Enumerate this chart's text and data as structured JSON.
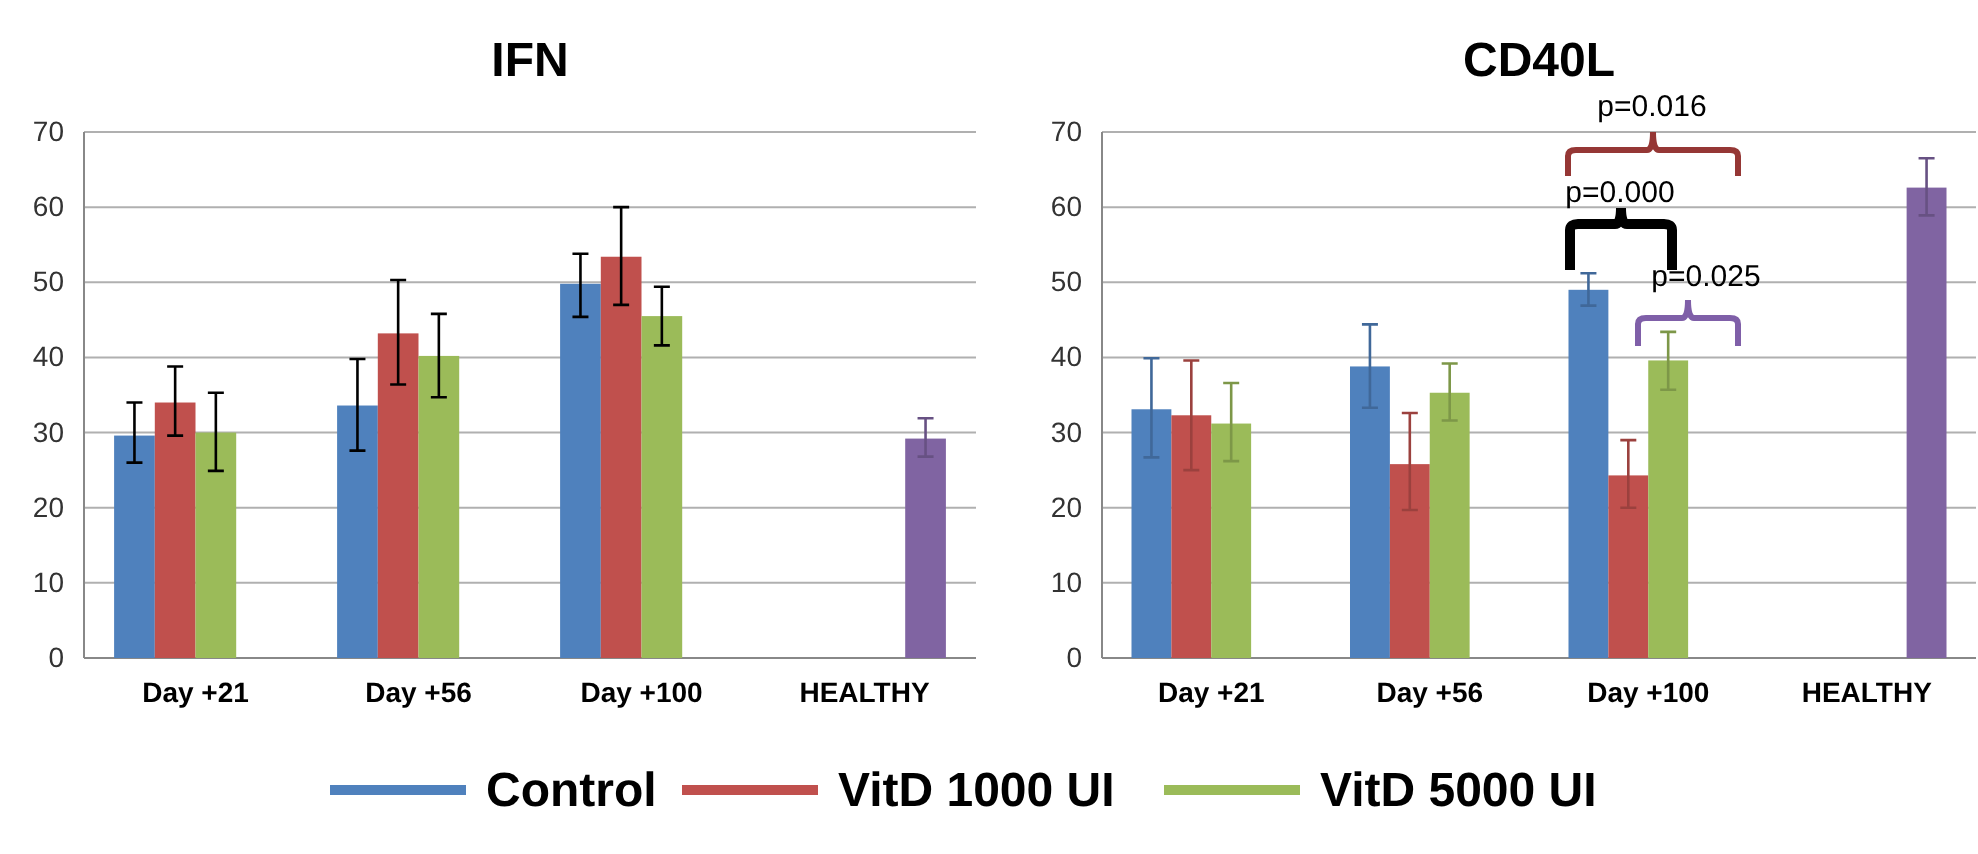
{
  "chart_data": [
    {
      "type": "bar",
      "title": "IFN",
      "categories": [
        "Day +21",
        "Day +56",
        "Day +100",
        "HEALTHY"
      ],
      "ylim": [
        0,
        70
      ],
      "yticks": [
        0,
        10,
        20,
        30,
        40,
        50,
        60,
        70
      ],
      "grid": "y",
      "legend": "bottom",
      "series": [
        {
          "name": "Control",
          "color": "#4f81bd",
          "values": [
            29.6,
            33.6,
            49.8,
            null
          ],
          "errors": [
            [
              26,
              34
            ],
            [
              27.6,
              39.8
            ],
            [
              45.4,
              53.8
            ],
            null
          ]
        },
        {
          "name": "VitD 1000 UI",
          "color": "#c0504d",
          "values": [
            34.0,
            43.2,
            53.4,
            null
          ],
          "errors": [
            [
              29.6,
              38.8
            ],
            [
              36.4,
              50.3
            ],
            [
              47,
              60
            ],
            null
          ]
        },
        {
          "name": "VitD 5000 UI",
          "color": "#9bbb59",
          "values": [
            30.0,
            40.2,
            45.5,
            null
          ],
          "errors": [
            [
              24.9,
              35.3
            ],
            [
              34.7,
              45.8
            ],
            [
              41.6,
              49.4
            ],
            null
          ]
        },
        {
          "color": "#8064a2",
          "values": [
            null,
            null,
            null,
            29.2
          ],
          "errors": [
            null,
            null,
            null,
            [
              26.8,
              31.9
            ]
          ]
        }
      ]
    },
    {
      "type": "bar",
      "title": "CD40L",
      "categories": [
        "Day +21",
        "Day +56",
        "Day +100",
        "HEALTHY"
      ],
      "ylim": [
        0,
        70
      ],
      "yticks": [
        0,
        10,
        20,
        30,
        40,
        50,
        60,
        70
      ],
      "grid": "y",
      "series": [
        {
          "color": "#4f81bd",
          "values": [
            33.1,
            38.8,
            49.0,
            null
          ],
          "errors": [
            [
              26.7,
              39.9
            ],
            [
              33.3,
              44.4
            ],
            [
              46.9,
              51.2
            ],
            null
          ]
        },
        {
          "color": "#c0504d",
          "values": [
            32.3,
            25.8,
            24.3,
            null
          ],
          "errors": [
            [
              25.0,
              39.6
            ],
            [
              19.7,
              32.6
            ],
            [
              20.0,
              29.0
            ],
            null
          ]
        },
        {
          "color": "#9bbb59",
          "values": [
            31.2,
            35.3,
            39.6,
            null
          ],
          "errors": [
            [
              26.2,
              36.6
            ],
            [
              31.6,
              39.2
            ],
            [
              35.7,
              43.4
            ],
            null
          ]
        },
        {
          "color": "#8064a2",
          "values": [
            null,
            null,
            null,
            62.6
          ],
          "errors": [
            null,
            null,
            null,
            [
              58.9,
              66.5
            ]
          ]
        }
      ],
      "annotations": [
        "p=0.016",
        "p=0.000",
        "p=0.025"
      ]
    }
  ]
}
